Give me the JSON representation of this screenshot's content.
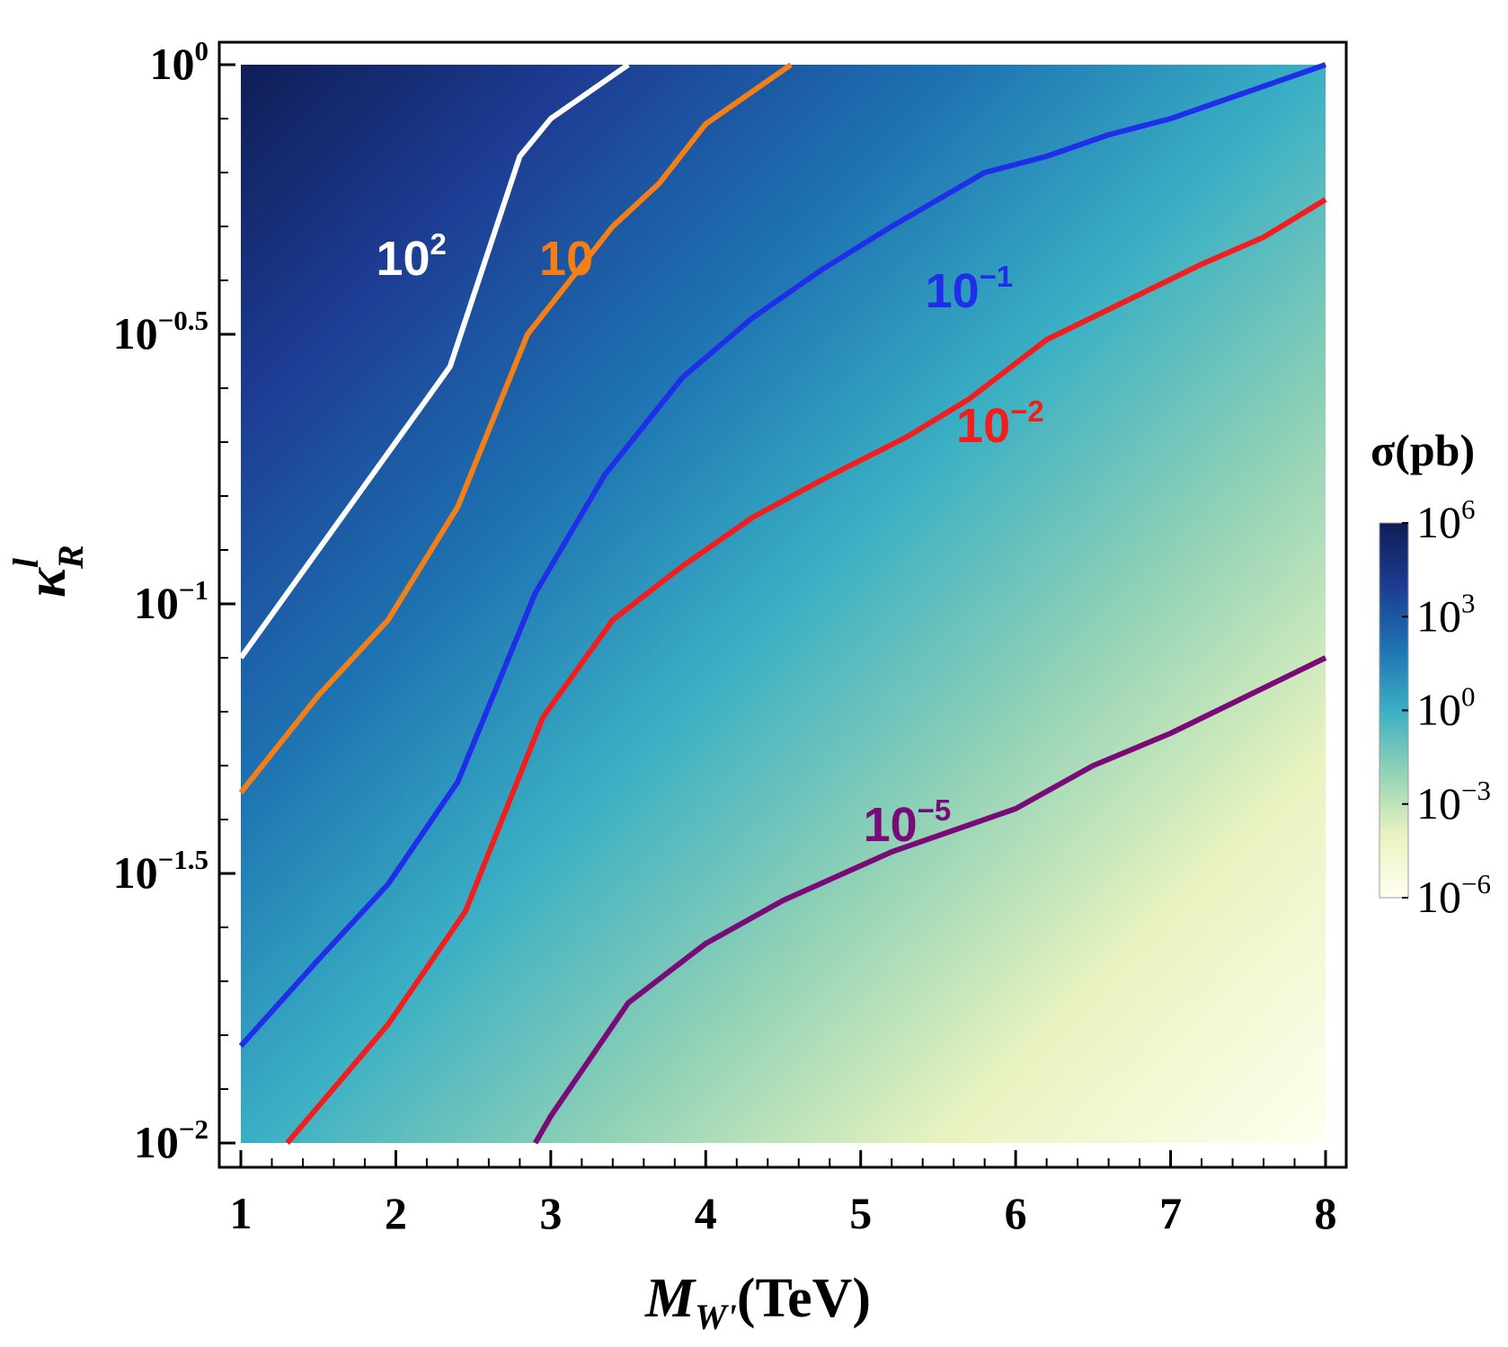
{
  "chart_data": {
    "type": "heatmap",
    "title": "",
    "xlabel": {
      "base": "M",
      "sub": "W'",
      "unit": "(TeV)"
    },
    "ylabel": {
      "base": "κ",
      "sup": "l",
      "sub": "R"
    },
    "xlim": [
      1,
      8
    ],
    "ylim_log10": [
      -2,
      0
    ],
    "x_ticks": [
      1,
      2,
      3,
      4,
      5,
      6,
      7,
      8
    ],
    "x_tick_labels": [
      "1",
      "2",
      "3",
      "4",
      "5",
      "6",
      "7",
      "8"
    ],
    "y_ticks_log10": [
      -2,
      -1.5,
      -1,
      -0.5,
      0
    ],
    "y_tick_labels": [
      {
        "base": "10",
        "exp": "−2"
      },
      {
        "base": "10",
        "exp": "−1.5"
      },
      {
        "base": "10",
        "exp": "−1"
      },
      {
        "base": "10",
        "exp": "−0.5"
      },
      {
        "base": "10",
        "exp": "0"
      }
    ],
    "colorbar": {
      "title": "σ(pb)",
      "range_log10": [
        -6,
        6
      ],
      "ticks": [
        {
          "log10": 6,
          "base": "10",
          "exp": "6"
        },
        {
          "log10": 3,
          "base": "10",
          "exp": "3"
        },
        {
          "log10": 0,
          "base": "10",
          "exp": "0"
        },
        {
          "log10": -3,
          "base": "10",
          "exp": "−3"
        },
        {
          "log10": -6,
          "base": "10",
          "exp": "−6"
        }
      ],
      "colors": [
        "#fffff0",
        "#e8f3bf",
        "#8fd1b6",
        "#3aafc4",
        "#1d71b1",
        "#1d3c93",
        "#0f1d56"
      ]
    },
    "grid": false,
    "contours": [
      {
        "level_base": "10",
        "level_exp": "2",
        "color": "#ffffff",
        "x": [
          1.0,
          1.5,
          1.9,
          2.35,
          2.8,
          3.0,
          3.5
        ],
        "y_log10": [
          -1.1,
          -0.9,
          -0.74,
          -0.56,
          -0.17,
          -0.1,
          0.0
        ]
      },
      {
        "level_base": "10",
        "level_exp": "",
        "color": "#f57f17",
        "x": [
          1.0,
          1.5,
          1.95,
          2.4,
          2.85,
          3.4,
          3.7,
          4.0,
          4.55
        ],
        "y_log10": [
          -1.35,
          -1.17,
          -1.03,
          -0.82,
          -0.5,
          -0.3,
          -0.22,
          -0.11,
          0.0
        ]
      },
      {
        "level_base": "10",
        "level_exp": "−1",
        "color": "#1f2ee8",
        "x": [
          1.0,
          1.5,
          1.95,
          2.4,
          2.9,
          3.35,
          3.85,
          4.3,
          4.75,
          5.2,
          5.8,
          6.2,
          6.6,
          7.0,
          7.5,
          8.0
        ],
        "y_log10": [
          -1.82,
          -1.66,
          -1.52,
          -1.33,
          -0.98,
          -0.76,
          -0.58,
          -0.47,
          -0.38,
          -0.3,
          -0.2,
          -0.17,
          -0.13,
          -0.1,
          -0.05,
          0.0
        ]
      },
      {
        "level_base": "10",
        "level_exp": "−2",
        "color": "#f21e1e",
        "x": [
          1.3,
          1.95,
          2.45,
          2.95,
          3.4,
          3.85,
          4.3,
          4.75,
          5.3,
          5.7,
          6.2,
          6.7,
          7.2,
          7.6,
          8.0
        ],
        "y_log10": [
          -2.0,
          -1.78,
          -1.57,
          -1.21,
          -1.03,
          -0.93,
          -0.84,
          -0.77,
          -0.69,
          -0.62,
          -0.51,
          -0.44,
          -0.37,
          -0.32,
          -0.25
        ]
      },
      {
        "level_base": "10",
        "level_exp": "−5",
        "color": "#7a0a78",
        "x": [
          2.9,
          3.0,
          3.5,
          4.0,
          4.5,
          5.2,
          6.0,
          6.5,
          7.0,
          7.5,
          8.0
        ],
        "y_log10": [
          -2.0,
          -1.95,
          -1.74,
          -1.63,
          -1.55,
          -1.46,
          -1.38,
          -1.3,
          -1.24,
          -1.17,
          -1.1
        ]
      }
    ]
  }
}
